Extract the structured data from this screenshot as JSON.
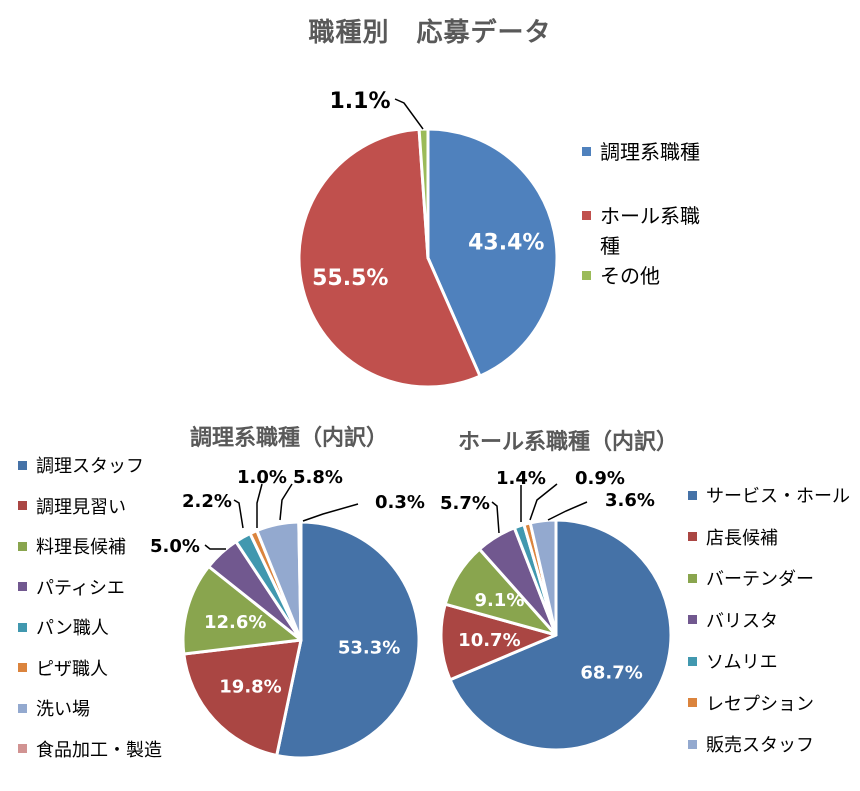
{
  "title": "職種別　応募データ",
  "chart_data": [
    {
      "type": "pie",
      "title": "",
      "categories": [
        "調理系職種",
        "ホール系職種",
        "その他"
      ],
      "values": [
        43.4,
        55.5,
        1.1
      ],
      "labels": [
        "43.4%",
        "55.5%",
        "1.1%"
      ],
      "colors": [
        "#4F81BD",
        "#C0504D",
        "#9BBB59"
      ],
      "legend": "right",
      "legend_lines": [
        [
          "調理系職種"
        ],
        [
          "ホール系職",
          "種"
        ],
        [
          "その他"
        ]
      ]
    },
    {
      "type": "pie",
      "title": "調理系職種（内訳）",
      "categories": [
        "調理スタッフ",
        "調理見習い",
        "料理長候補",
        "パティシエ",
        "パン職人",
        "ピザ職人",
        "洗い場",
        "食品加工・製造"
      ],
      "values": [
        53.3,
        19.8,
        12.6,
        5.0,
        2.2,
        1.0,
        5.8,
        0.3
      ],
      "labels": [
        "53.3%",
        "19.8%",
        "12.6%",
        "5.0%",
        "2.2%",
        "1.0%",
        "5.8%",
        "0.3%"
      ],
      "colors": [
        "#4572A7",
        "#AA4643",
        "#89A54E",
        "#71588F",
        "#4198AF",
        "#DB843D",
        "#93A9CF",
        "#D19392"
      ],
      "legend": "left"
    },
    {
      "type": "pie",
      "title": "ホール系職種（内訳）",
      "categories": [
        "サービス・ホール",
        "店長候補",
        "バーテンダー",
        "バリスタ",
        "ソムリエ",
        "レセプション",
        "販売スタッフ"
      ],
      "values": [
        68.7,
        10.7,
        9.1,
        5.7,
        1.4,
        0.9,
        3.6
      ],
      "labels": [
        "68.7%",
        "10.7%",
        "9.1%",
        "5.7%",
        "1.4%",
        "0.9%",
        "3.6%"
      ],
      "colors": [
        "#4572A7",
        "#AA4643",
        "#89A54E",
        "#71588F",
        "#4198AF",
        "#DB843D",
        "#93A9CF"
      ],
      "legend": "right"
    }
  ]
}
